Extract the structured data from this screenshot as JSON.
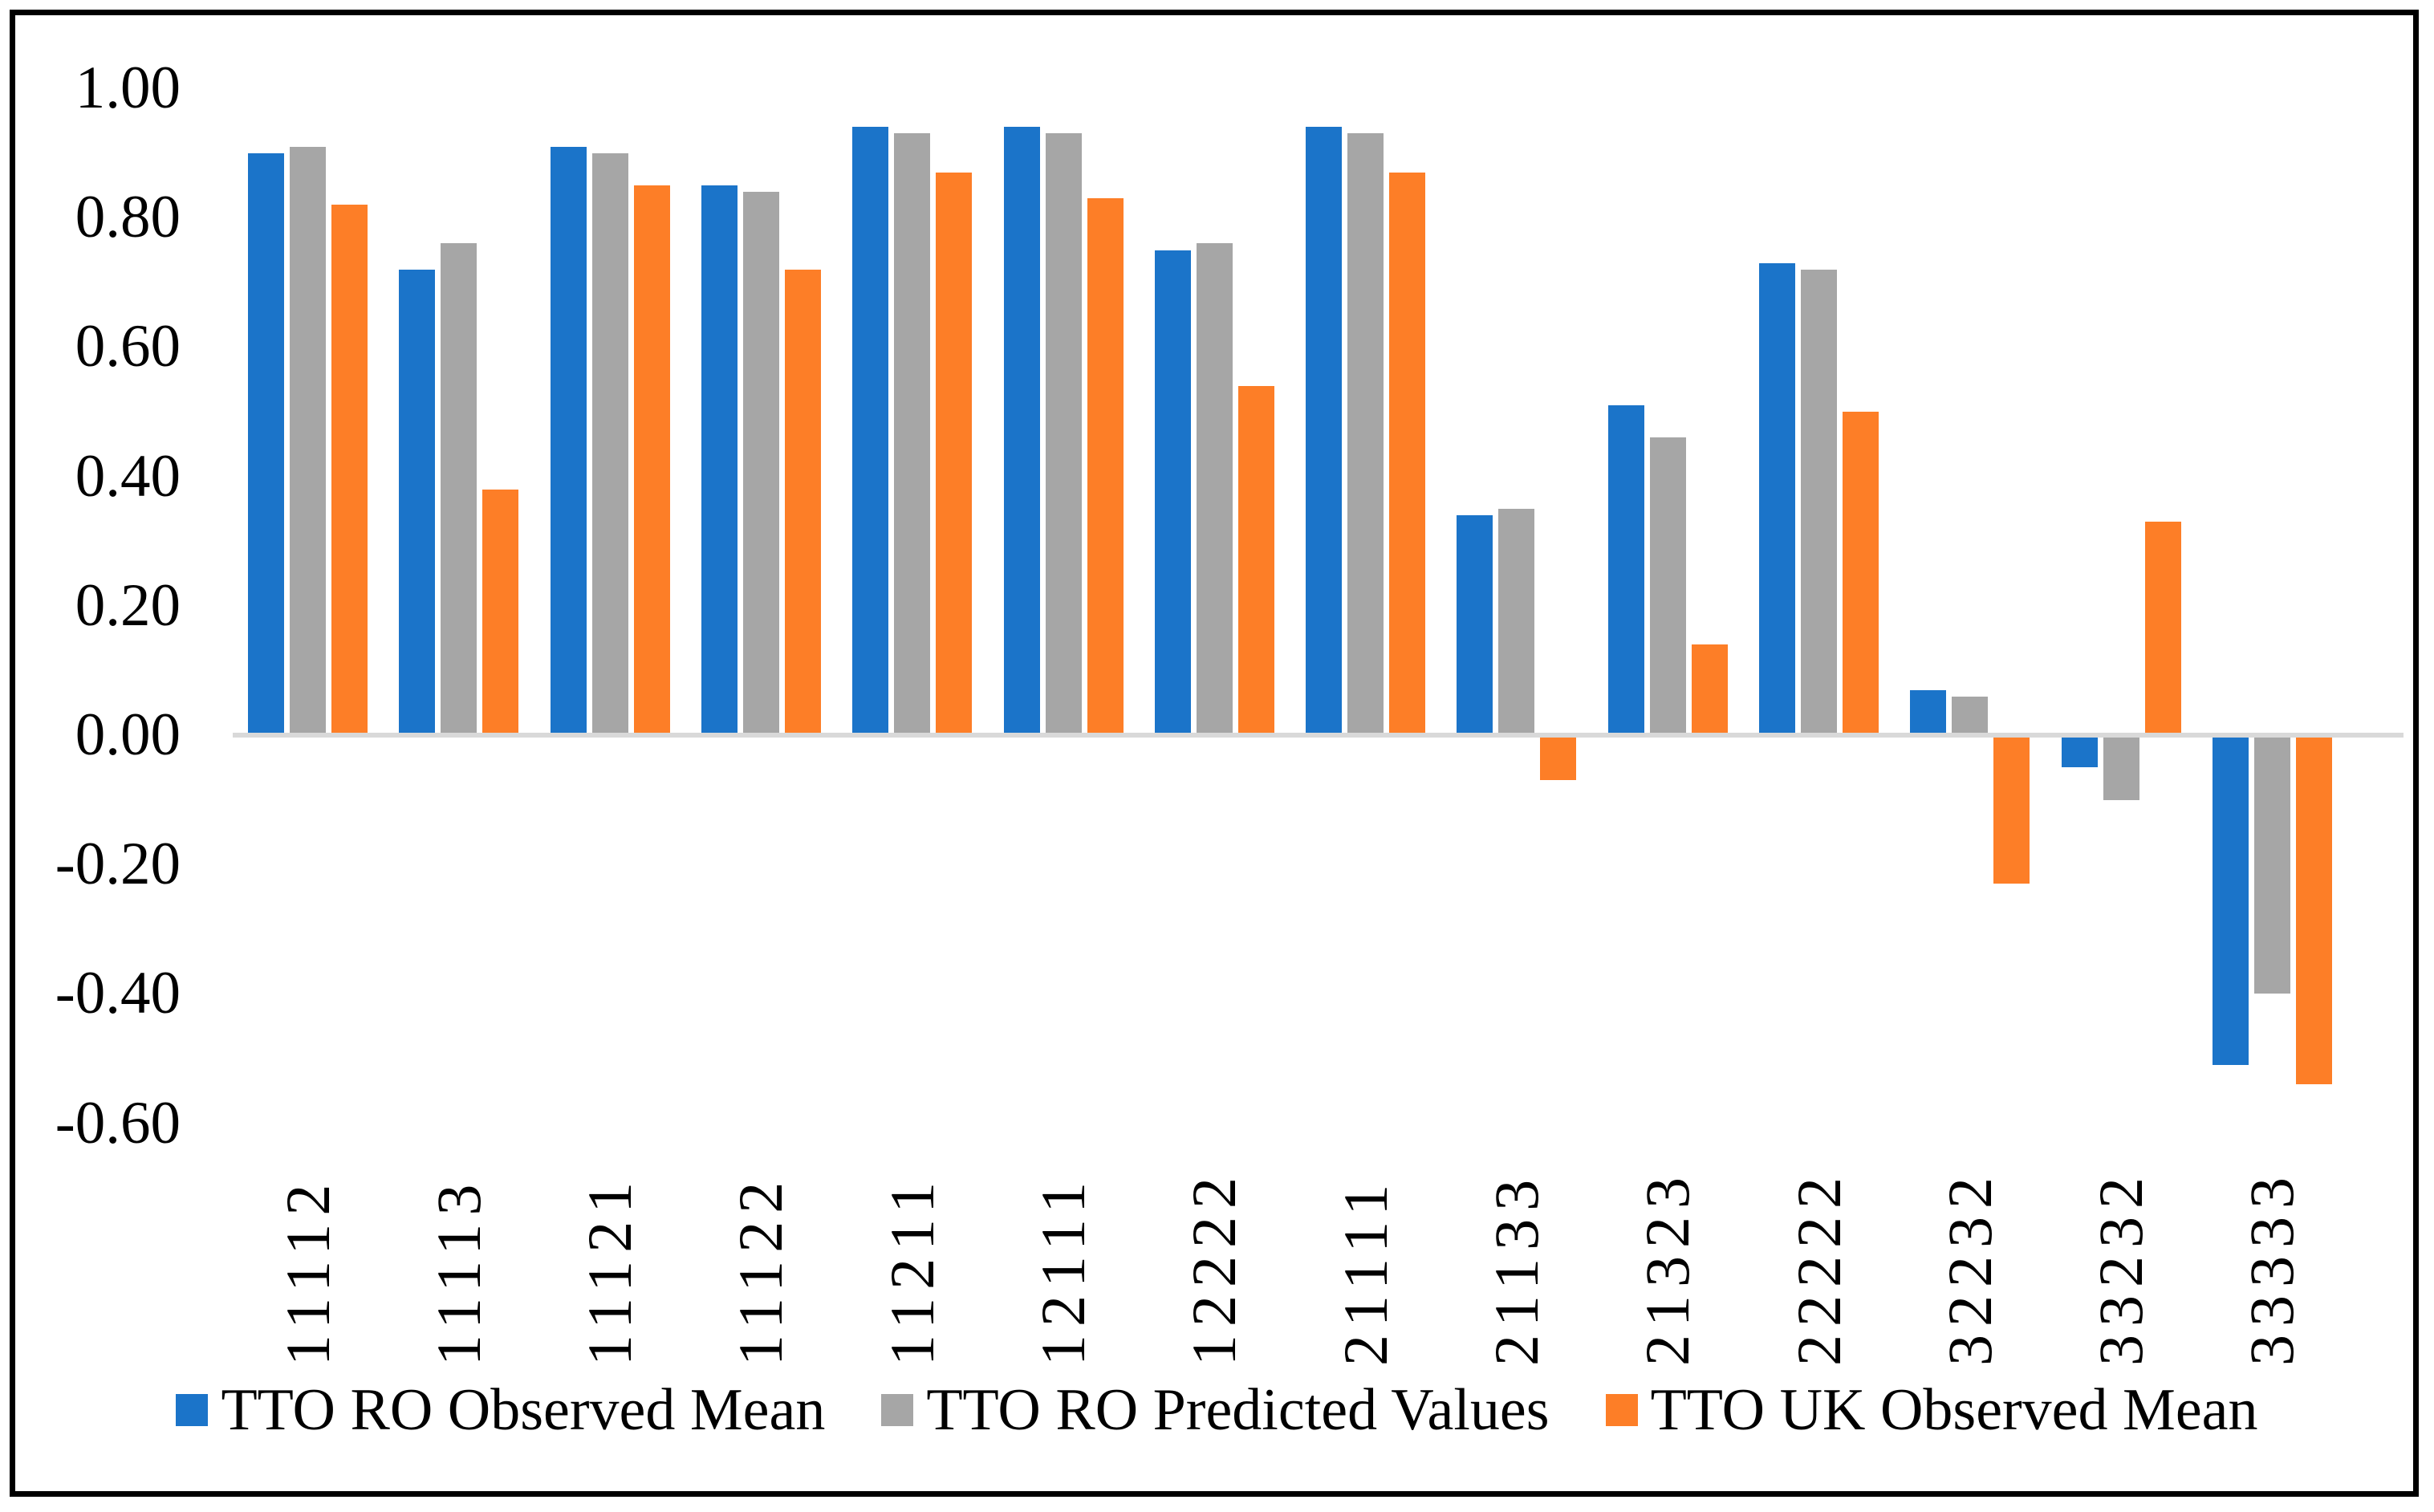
{
  "chart_data": {
    "type": "bar",
    "title": "",
    "xlabel": "",
    "ylabel": "",
    "categories": [
      "11112",
      "11113",
      "11121",
      "11122",
      "11211",
      "12111",
      "12222",
      "21111",
      "21133",
      "21323",
      "22222",
      "32232",
      "33232",
      "33333"
    ],
    "series": [
      {
        "name": "TTO RO Observed Mean",
        "color": "#1B74C9",
        "values": [
          0.9,
          0.72,
          0.91,
          0.85,
          0.94,
          0.94,
          0.75,
          0.94,
          0.34,
          0.51,
          0.73,
          0.07,
          -0.05,
          -0.51
        ]
      },
      {
        "name": "TTO RO Predicted Values",
        "color": "#A6A6A6",
        "values": [
          0.91,
          0.76,
          0.9,
          0.84,
          0.93,
          0.93,
          0.76,
          0.93,
          0.35,
          0.46,
          0.72,
          0.06,
          -0.1,
          -0.4
        ]
      },
      {
        "name": "TTO UK Observed Mean",
        "color": "#FD7E27",
        "values": [
          0.82,
          0.38,
          0.85,
          0.72,
          0.87,
          0.83,
          0.54,
          0.87,
          -0.07,
          0.14,
          0.5,
          -0.23,
          0.33,
          -0.54
        ]
      }
    ],
    "y_axis": {
      "tick_labels": [
        "1.00",
        "0.80",
        "0.60",
        "0.40",
        "0.20",
        "0.00",
        "-0.20",
        "-0.40",
        "-0.60"
      ],
      "tick_values": [
        1.0,
        0.8,
        0.6,
        0.4,
        0.2,
        0.0,
        -0.2,
        -0.4,
        -0.6
      ],
      "range": [
        -0.6,
        1.0
      ],
      "gridlines": false
    },
    "legend": {
      "position": "bottom",
      "items": [
        "TTO RO Observed Mean",
        "TTO RO Predicted Values",
        "TTO UK Observed Mean"
      ]
    },
    "colors": {
      "baseline": "#D9D9D9",
      "frame": "#000000",
      "text": "#000000"
    }
  }
}
